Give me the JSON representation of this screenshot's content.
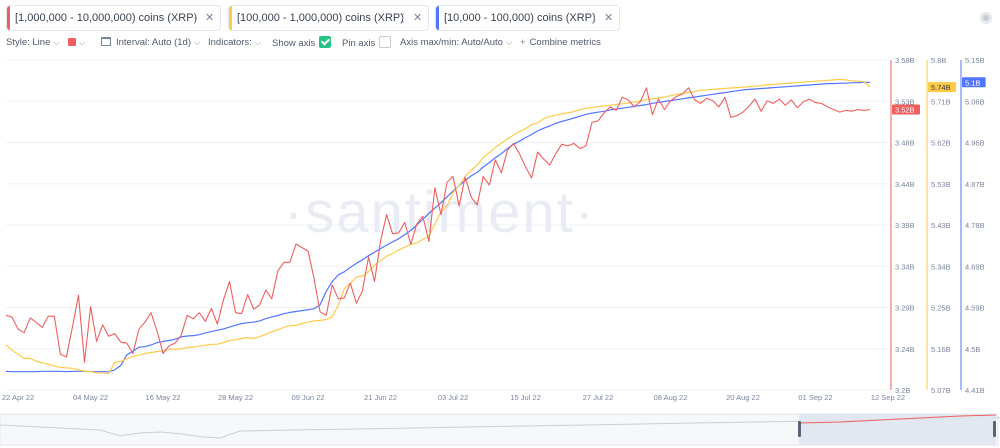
{
  "tabs": [
    {
      "label": "[1,000,000 - 10,000,000) coins (XRP)",
      "color": "#f05f5f"
    },
    {
      "label": "[100,000 - 1,000,000) coins (XRP)",
      "color": "#ffcb47"
    },
    {
      "label": "[10,000 - 100,000) coins (XRP)",
      "color": "#5275ff"
    }
  ],
  "toolbar": {
    "style_label": "Style: Line",
    "interval_label": "Interval: Auto (1d)",
    "indicators_label": "Indicators:",
    "show_axis_label": "Show axis",
    "show_axis_checked": true,
    "pin_axis_label": "Pin axis",
    "pin_axis_checked": false,
    "axis_minmax_label": "Axis max/min: Auto/Auto",
    "combine_label": "Combine metrics"
  },
  "watermark": "·santiment·",
  "chart_data": {
    "type": "line",
    "x_tick_labels": [
      "22 Apr 22",
      "04 May 22",
      "16 May 22",
      "28 May 22",
      "09 Jun 22",
      "21 Jun 22",
      "03 Jul 22",
      "15 Jul 22",
      "27 Jul 22",
      "08 Aug 22",
      "20 Aug 22",
      "01 Sep 22",
      "12 Sep 22"
    ],
    "x_range": [
      "2022-04-20",
      "2022-09-13"
    ],
    "axes": [
      {
        "id": "red",
        "color": "#f05f5f",
        "ticks": [
          "3.58B",
          "3.53B",
          "3.48B",
          "3.44B",
          "3.39B",
          "3.34B",
          "3.29B",
          "3.24B",
          "3.2B"
        ],
        "range": [
          3.2,
          3.58
        ],
        "current_label": "3.52B",
        "current": 3.523
      },
      {
        "id": "yellow",
        "color": "#ffcb47",
        "ticks": [
          "5.8B",
          "5.71B",
          "5.62B",
          "5.53B",
          "5.43B",
          "5.34B",
          "5.25B",
          "5.16B",
          "5.07B"
        ],
        "range": [
          5.07,
          5.8
        ],
        "current_label": "5.74B",
        "current": 5.74
      },
      {
        "id": "blue",
        "color": "#5275ff",
        "ticks": [
          "5.15B",
          "5.06B",
          "4.96B",
          "4.87B",
          "4.78B",
          "4.69B",
          "4.59B",
          "4.5B",
          "4.41B"
        ],
        "range": [
          4.41,
          5.15
        ],
        "current_label": "5.1B",
        "current": 5.1
      }
    ],
    "series": [
      {
        "name": "[1,000,000 - 10,000,000) coins (XRP)",
        "axis": "red",
        "color": "#f05f5f",
        "start": "2022-04-20",
        "values": [
          3.286,
          3.284,
          3.27,
          3.266,
          3.283,
          3.278,
          3.272,
          3.285,
          3.285,
          3.241,
          3.238,
          3.273,
          3.309,
          3.232,
          3.296,
          3.256,
          3.275,
          3.262,
          3.265,
          3.255,
          3.254,
          3.242,
          3.27,
          3.278,
          3.289,
          3.268,
          3.242,
          3.251,
          3.254,
          3.263,
          3.286,
          3.282,
          3.289,
          3.279,
          3.294,
          3.276,
          3.304,
          3.325,
          3.289,
          3.288,
          3.31,
          3.293,
          3.298,
          3.315,
          3.305,
          3.337,
          3.347,
          3.347,
          3.368,
          3.364,
          3.36,
          3.328,
          3.29,
          3.286,
          3.321,
          3.305,
          3.306,
          3.323,
          3.3,
          3.314,
          3.353,
          3.325,
          3.371,
          3.402,
          3.38,
          3.381,
          3.393,
          3.368,
          3.391,
          3.4,
          3.371,
          3.433,
          3.402,
          3.439,
          3.446,
          3.412,
          3.445,
          3.422,
          3.413,
          3.446,
          3.436,
          3.465,
          3.45,
          3.476,
          3.484,
          3.472,
          3.457,
          3.444,
          3.474,
          3.466,
          3.459,
          3.472,
          3.483,
          3.481,
          3.484,
          3.478,
          3.481,
          3.508,
          3.51,
          3.519,
          3.526,
          3.522,
          3.537,
          3.534,
          3.526,
          3.532,
          3.548,
          3.517,
          3.535,
          3.523,
          3.533,
          3.538,
          3.541,
          3.548,
          3.534,
          3.53,
          3.536,
          3.533,
          3.526,
          3.537,
          3.514,
          3.516,
          3.52,
          3.527,
          3.535,
          3.521,
          3.533,
          3.53,
          3.535,
          3.528,
          3.534,
          3.525,
          3.532,
          3.535,
          3.531,
          3.53,
          3.526,
          3.523,
          3.52,
          3.522,
          3.521,
          3.523,
          3.522,
          3.523
        ]
      },
      {
        "name": "[100,000 - 1,000,000) coins (XRP)",
        "axis": "yellow",
        "color": "#ffcb47",
        "start": "2022-04-20",
        "values": [
          5.17,
          5.158,
          5.149,
          5.14,
          5.14,
          5.134,
          5.13,
          5.127,
          5.123,
          5.12,
          5.119,
          5.118,
          5.114,
          5.112,
          5.111,
          5.108,
          5.108,
          5.106,
          5.131,
          5.133,
          5.139,
          5.144,
          5.147,
          5.151,
          5.153,
          5.155,
          5.157,
          5.16,
          5.16,
          5.161,
          5.164,
          5.165,
          5.167,
          5.169,
          5.171,
          5.171,
          5.175,
          5.18,
          5.181,
          5.184,
          5.186,
          5.184,
          5.188,
          5.193,
          5.199,
          5.203,
          5.209,
          5.212,
          5.213,
          5.217,
          5.22,
          5.223,
          5.224,
          5.226,
          5.232,
          5.258,
          5.294,
          5.306,
          5.32,
          5.322,
          5.332,
          5.346,
          5.356,
          5.366,
          5.372,
          5.38,
          5.386,
          5.392,
          5.395,
          5.403,
          5.411,
          5.437,
          5.464,
          5.477,
          5.507,
          5.522,
          5.542,
          5.556,
          5.568,
          5.584,
          5.595,
          5.607,
          5.616,
          5.625,
          5.634,
          5.642,
          5.648,
          5.657,
          5.661,
          5.67,
          5.675,
          5.678,
          5.681,
          5.683,
          5.686,
          5.69,
          5.693,
          5.695,
          5.697,
          5.698,
          5.7,
          5.702,
          5.703,
          5.705,
          5.707,
          5.709,
          5.713,
          5.714,
          5.716,
          5.718,
          5.721,
          5.724,
          5.726,
          5.728,
          5.73,
          5.733,
          5.734,
          5.735,
          5.736,
          5.737,
          5.738,
          5.739,
          5.74,
          5.741,
          5.742,
          5.743,
          5.745,
          5.746,
          5.747,
          5.748,
          5.749,
          5.75,
          5.751,
          5.752,
          5.753,
          5.754,
          5.755,
          5.756,
          5.757,
          5.756,
          5.754,
          5.753,
          5.752,
          5.74
        ]
      },
      {
        "name": "[10,000 - 100,000) coins (XRP)",
        "axis": "blue",
        "color": "#5275ff",
        "start": "2022-04-20",
        "values": [
          4.452,
          4.451,
          4.451,
          4.451,
          4.451,
          4.451,
          4.452,
          4.452,
          4.452,
          4.452,
          4.451,
          4.452,
          4.452,
          4.452,
          4.451,
          4.451,
          4.451,
          4.451,
          4.455,
          4.465,
          4.489,
          4.497,
          4.506,
          4.507,
          4.511,
          4.516,
          4.519,
          4.521,
          4.524,
          4.529,
          4.531,
          4.532,
          4.534,
          4.538,
          4.541,
          4.544,
          4.547,
          4.551,
          4.555,
          4.559,
          4.561,
          4.562,
          4.565,
          4.57,
          4.574,
          4.577,
          4.581,
          4.584,
          4.586,
          4.588,
          4.59,
          4.592,
          4.601,
          4.631,
          4.653,
          4.668,
          4.675,
          4.685,
          4.694,
          4.702,
          4.711,
          4.719,
          4.727,
          4.735,
          4.742,
          4.749,
          4.758,
          4.768,
          4.78,
          4.793,
          4.806,
          4.818,
          4.83,
          4.843,
          4.856,
          4.868,
          4.88,
          4.89,
          4.898,
          4.91,
          4.92,
          4.931,
          4.94,
          4.951,
          4.961,
          4.968,
          4.976,
          4.983,
          4.991,
          4.997,
          5.002,
          5.008,
          5.012,
          5.016,
          5.02,
          5.024,
          5.028,
          5.031,
          5.033,
          5.035,
          5.038,
          5.04,
          5.042,
          5.044,
          5.046,
          5.048,
          5.05,
          5.053,
          5.055,
          5.057,
          5.059,
          5.061,
          5.063,
          5.065,
          5.067,
          5.069,
          5.071,
          5.073,
          5.075,
          5.077,
          5.079,
          5.081,
          5.083,
          5.084,
          5.085,
          5.086,
          5.087,
          5.088,
          5.089,
          5.09,
          5.091,
          5.092,
          5.093,
          5.094,
          5.095,
          5.096,
          5.097,
          5.097,
          5.098,
          5.098,
          5.099,
          5.099,
          5.1,
          5.1
        ]
      }
    ]
  }
}
